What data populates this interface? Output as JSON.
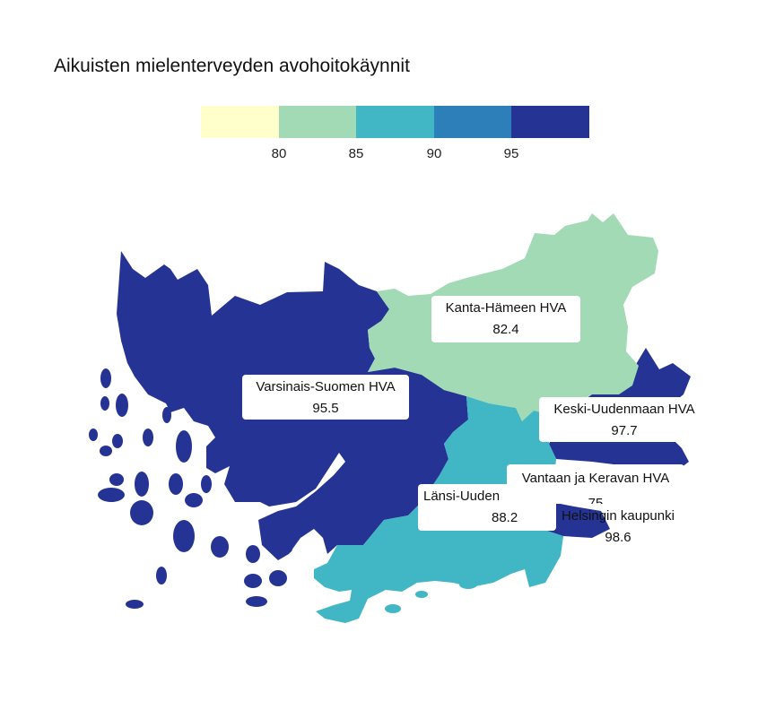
{
  "title": "Aikuisten mielenterveyden avohoitokäynnit",
  "legend": {
    "colors": [
      "#ffffcc",
      "#a1dab4",
      "#41b6c4",
      "#2c7fb8",
      "#253494"
    ],
    "ticks": [
      "80",
      "85",
      "90",
      "95"
    ]
  },
  "regions": [
    {
      "name": "Kanta-Hämeen HVA",
      "value": "82.4",
      "color": "#a1dab4"
    },
    {
      "name": "Varsinais-Suomen HVA",
      "value": "95.5",
      "color": "#253494"
    },
    {
      "name": "Keski-Uudenmaan HVA",
      "value": "97.7",
      "color": "#253494"
    },
    {
      "name": "Vantaan ja Keravan HVA",
      "value": "75",
      "color": "#ffffcc"
    },
    {
      "name": "Länsi-Uuden",
      "value": "88.2",
      "color": "#41b6c4"
    },
    {
      "name": "Helsingin kaupunki",
      "value": "98.6",
      "color": "#253494"
    }
  ]
}
